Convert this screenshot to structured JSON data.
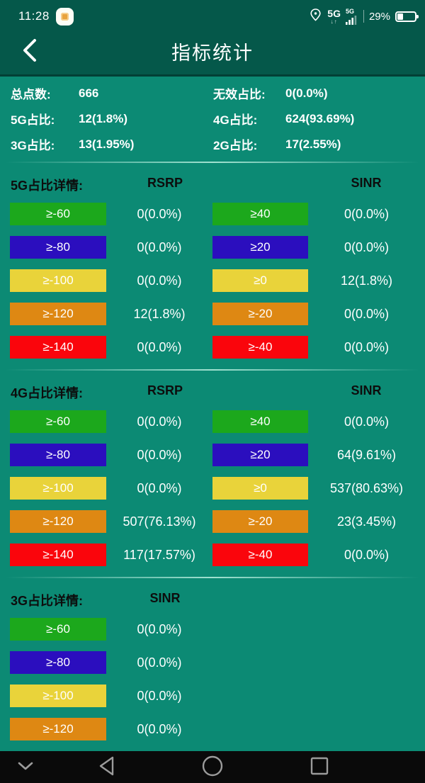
{
  "colors": {
    "header_bg": "#05584A",
    "content_bg": "#0C8A74",
    "ink": "#0D0D0D",
    "bar_green": "#1CA81C",
    "bar_blue": "#2B0EBE",
    "bar_yellow": "#E9D33A",
    "bar_orange": "#DE8813",
    "bar_red": "#FA050C",
    "nav_bg": "#0A0A0A",
    "nav_icon": "#9B9B9B"
  },
  "row_colors": [
    "green",
    "blue",
    "yellow",
    "orange",
    "red"
  ],
  "status_bar": {
    "time": "11:28",
    "network_primary": "5G",
    "network_primary_arrows": "↓↑",
    "network_secondary": "5G",
    "battery_percent": "29%"
  },
  "app_bar": {
    "title": "指标统计"
  },
  "summary": {
    "rows": [
      {
        "l_label": "总点数:",
        "l_value": "666",
        "r_label": "无效占比:",
        "r_value": "0(0.0%)"
      },
      {
        "l_label": "5G占比:",
        "l_value": "12(1.8%)",
        "r_label": "4G占比:",
        "r_value": "624(93.69%)"
      },
      {
        "l_label": "3G占比:",
        "l_value": "13(1.95%)",
        "r_label": "2G占比:",
        "r_value": "17(2.55%)"
      }
    ]
  },
  "sections": [
    {
      "id": "5g",
      "title": "5G占比详情:",
      "col1_header": "RSRP",
      "col2_header": "SINR",
      "rows": [
        {
          "left_label": "≥-60",
          "left_value": "0(0.0%)",
          "right_label": "≥40",
          "right_value": "0(0.0%)"
        },
        {
          "left_label": "≥-80",
          "left_value": "0(0.0%)",
          "right_label": "≥20",
          "right_value": "0(0.0%)"
        },
        {
          "left_label": "≥-100",
          "left_value": "0(0.0%)",
          "right_label": "≥0",
          "right_value": "12(1.8%)"
        },
        {
          "left_label": "≥-120",
          "left_value": "12(1.8%)",
          "right_label": "≥-20",
          "right_value": "0(0.0%)"
        },
        {
          "left_label": "≥-140",
          "left_value": "0(0.0%)",
          "right_label": "≥-40",
          "right_value": "0(0.0%)"
        }
      ]
    },
    {
      "id": "4g",
      "title": "4G占比详情:",
      "col1_header": "RSRP",
      "col2_header": "SINR",
      "rows": [
        {
          "left_label": "≥-60",
          "left_value": "0(0.0%)",
          "right_label": "≥40",
          "right_value": "0(0.0%)"
        },
        {
          "left_label": "≥-80",
          "left_value": "0(0.0%)",
          "right_label": "≥20",
          "right_value": "64(9.61%)"
        },
        {
          "left_label": "≥-100",
          "left_value": "0(0.0%)",
          "right_label": "≥0",
          "right_value": "537(80.63%)"
        },
        {
          "left_label": "≥-120",
          "left_value": "507(76.13%)",
          "right_label": "≥-20",
          "right_value": "23(3.45%)"
        },
        {
          "left_label": "≥-140",
          "left_value": "117(17.57%)",
          "right_label": "≥-40",
          "right_value": "0(0.0%)"
        }
      ]
    },
    {
      "id": "3g",
      "title": "3G占比详情:",
      "col1_header": "SINR",
      "col2_header": null,
      "rows": [
        {
          "left_label": "≥-60",
          "left_value": "0(0.0%)"
        },
        {
          "left_label": "≥-80",
          "left_value": "0(0.0%)"
        },
        {
          "left_label": "≥-100",
          "left_value": "0(0.0%)"
        },
        {
          "left_label": "≥-120",
          "left_value": "0(0.0%)"
        }
      ]
    }
  ]
}
